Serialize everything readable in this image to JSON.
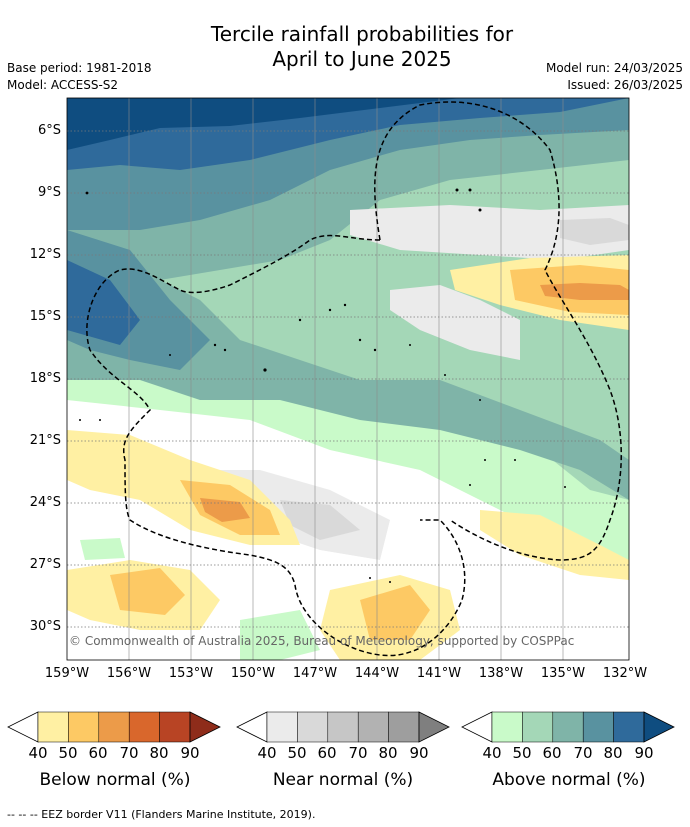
{
  "title_line1": "Tercile rainfall probabilities for",
  "title_line2": "April to June 2025",
  "base_period": "Base period: 1981-2018",
  "model": "Model: ACCESS-S2",
  "model_run": "Model run: 24/03/2025",
  "issued": "Issued: 26/03/2025",
  "lat_labels": [
    "6°S",
    "9°S",
    "12°S",
    "15°S",
    "18°S",
    "21°S",
    "24°S",
    "27°S",
    "30°S"
  ],
  "lon_labels": [
    "159°W",
    "156°W",
    "153°W",
    "150°W",
    "147°W",
    "144°W",
    "141°W",
    "138°W",
    "135°W",
    "132°W"
  ],
  "copyright": "© Commonwealth of Australia 2025, Bureau of Meteorology, supported by COSPPac",
  "legends": [
    {
      "title": "Below normal (%)",
      "ticks": [
        "40",
        "50",
        "60",
        "70",
        "80",
        "90"
      ],
      "colors": [
        "#fff0a3",
        "#fdc964",
        "#ec9b49",
        "#d9672c",
        "#b84424",
        "#8e2c1a"
      ]
    },
    {
      "title": "Near normal (%)",
      "ticks": [
        "40",
        "50",
        "60",
        "70",
        "80",
        "90"
      ],
      "colors": [
        "#ebebeb",
        "#d9d9d9",
        "#c6c6c6",
        "#b2b2b2",
        "#9e9e9e",
        "#7f7f7f"
      ]
    },
    {
      "title": "Above normal (%)",
      "ticks": [
        "40",
        "50",
        "60",
        "70",
        "80",
        "90"
      ],
      "colors": [
        "#c9fac9",
        "#a4d7b7",
        "#7fb4a8",
        "#5992a0",
        "#2f6a9b",
        "#0f4d80"
      ]
    }
  ],
  "footnote": "-- -- -- EEZ border V11 (Flanders Marine Institute, 2019)."
}
